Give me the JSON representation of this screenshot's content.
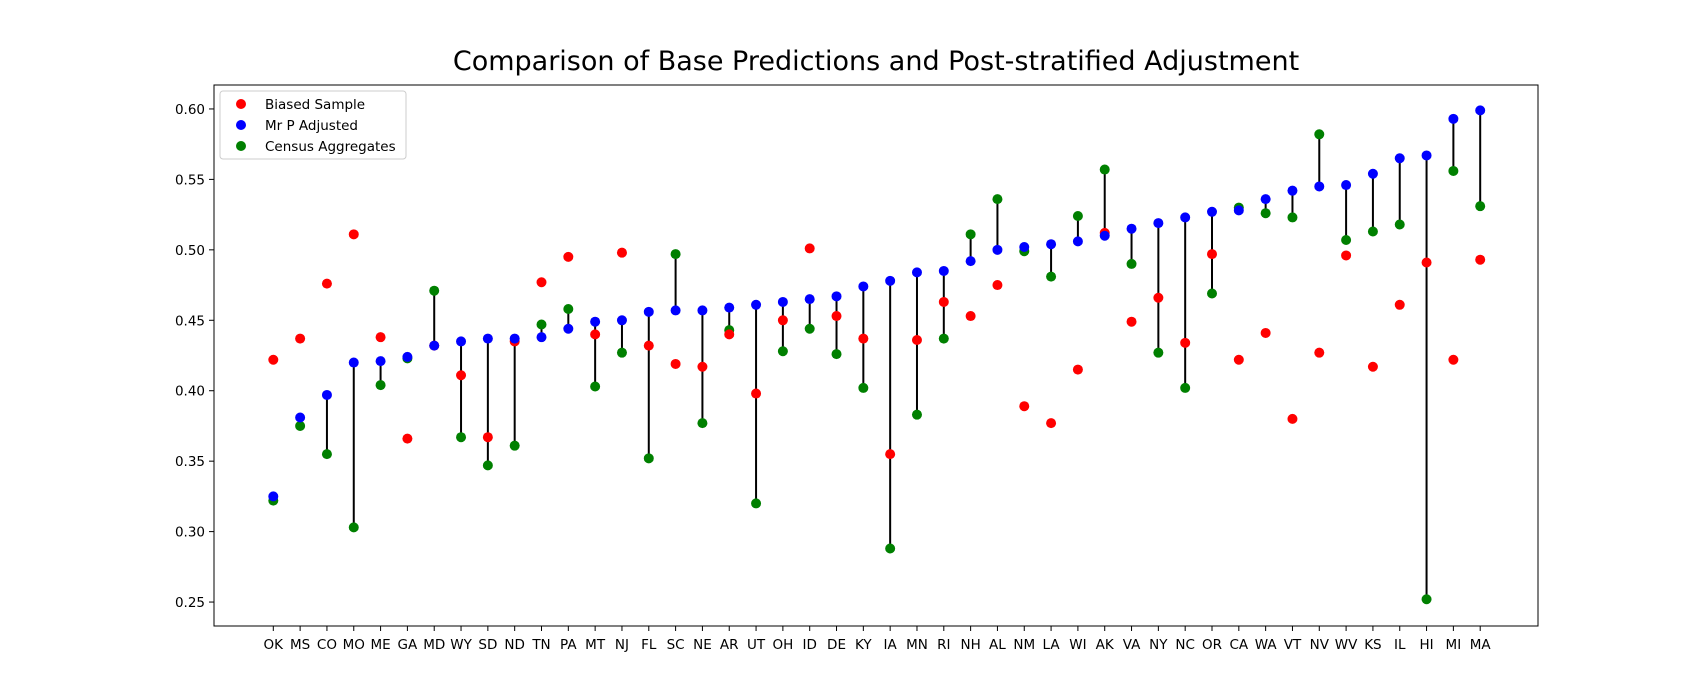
{
  "chart_data": {
    "type": "scatter",
    "title": "Comparison of Base Predictions and Post-stratified Adjustment",
    "xlabel": "",
    "ylabel": "",
    "ylim": [
      0.233,
      0.617
    ],
    "yticks": [
      0.25,
      0.3,
      0.35,
      0.4,
      0.45,
      0.5,
      0.55,
      0.6
    ],
    "grid": false,
    "legend_position": "top-left",
    "categories": [
      "OK",
      "MS",
      "CO",
      "MO",
      "ME",
      "GA",
      "MD",
      "WY",
      "SD",
      "ND",
      "TN",
      "PA",
      "MT",
      "NJ",
      "FL",
      "SC",
      "NE",
      "AR",
      "UT",
      "OH",
      "ID",
      "DE",
      "KY",
      "IA",
      "MN",
      "RI",
      "NH",
      "AL",
      "NM",
      "LA",
      "WI",
      "AK",
      "VA",
      "NY",
      "NC",
      "OR",
      "CA",
      "WA",
      "VT",
      "NV",
      "WV",
      "KS",
      "IL",
      "HI",
      "MI",
      "MA"
    ],
    "series": [
      {
        "name": "Biased Sample",
        "color": "#ff0000",
        "values": [
          0.422,
          0.437,
          0.476,
          0.511,
          0.438,
          0.366,
          0.432,
          0.411,
          0.367,
          0.435,
          0.477,
          0.495,
          0.44,
          0.498,
          0.432,
          0.419,
          0.417,
          0.44,
          0.398,
          0.45,
          0.501,
          0.453,
          0.437,
          0.355,
          0.436,
          0.463,
          0.453,
          0.475,
          0.389,
          0.377,
          0.415,
          0.512,
          0.449,
          0.466,
          0.434,
          0.497,
          0.422,
          0.441,
          0.38,
          0.427,
          0.496,
          0.417,
          0.461,
          0.491,
          0.422,
          0.493
        ]
      },
      {
        "name": "Mr P Adjusted",
        "color": "#0000ff",
        "values": [
          0.325,
          0.381,
          0.397,
          0.42,
          0.421,
          0.424,
          0.432,
          0.435,
          0.437,
          0.437,
          0.438,
          0.444,
          0.449,
          0.45,
          0.456,
          0.457,
          0.457,
          0.459,
          0.461,
          0.463,
          0.465,
          0.467,
          0.474,
          0.478,
          0.484,
          0.485,
          0.492,
          0.5,
          0.502,
          0.504,
          0.506,
          0.51,
          0.515,
          0.519,
          0.523,
          0.527,
          0.528,
          0.536,
          0.542,
          0.545,
          0.546,
          0.554,
          0.565,
          0.567,
          0.593,
          0.599
        ]
      },
      {
        "name": "Census Aggregates",
        "color": "#008000",
        "values": [
          0.322,
          0.375,
          0.355,
          0.303,
          0.404,
          0.423,
          0.471,
          0.367,
          0.347,
          0.361,
          0.447,
          0.458,
          0.403,
          0.427,
          0.352,
          0.497,
          0.377,
          0.443,
          0.32,
          0.428,
          0.444,
          0.426,
          0.402,
          0.288,
          0.383,
          0.437,
          0.511,
          0.536,
          0.499,
          0.481,
          0.524,
          0.557,
          0.49,
          0.427,
          0.402,
          0.469,
          0.53,
          0.526,
          0.523,
          0.582,
          0.507,
          0.513,
          0.518,
          0.252,
          0.556,
          0.531
        ]
      }
    ]
  }
}
